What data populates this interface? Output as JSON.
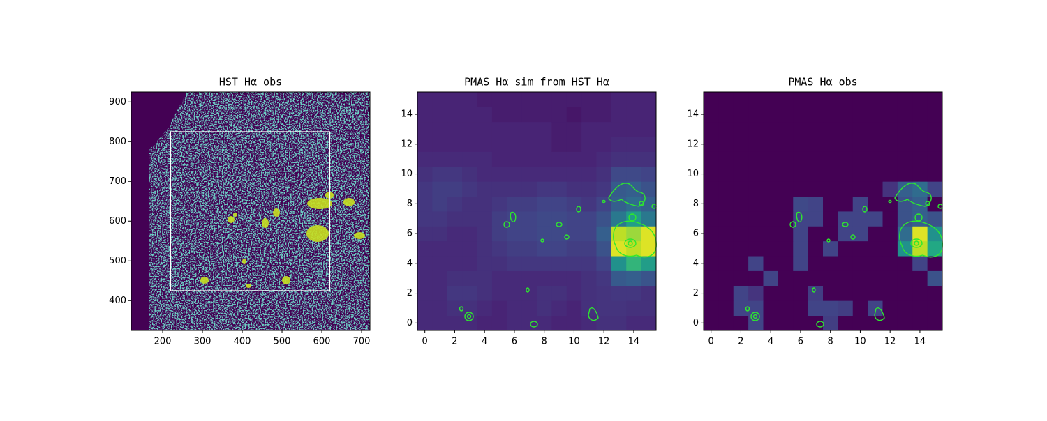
{
  "chart_data": [
    {
      "type": "image",
      "title": "HST Hα obs",
      "xlim": [
        121,
        721
      ],
      "ylim": [
        325,
        925
      ],
      "xticks": [
        200,
        300,
        400,
        500,
        600,
        700
      ],
      "yticks": [
        400,
        500,
        600,
        700,
        800,
        900
      ],
      "box": {
        "x": [
          220,
          620
        ],
        "y": [
          425,
          825
        ],
        "color": "#ffffff"
      }
    },
    {
      "type": "heatmap",
      "title": "PMAS Hα sim from HST Hα",
      "colormap": "viridis",
      "xlim": [
        -0.5,
        15.5
      ],
      "ylim": [
        -0.5,
        15.5
      ],
      "xticks": [
        0,
        2,
        4,
        6,
        8,
        10,
        12,
        14
      ],
      "yticks": [
        0,
        2,
        4,
        6,
        8,
        10,
        12,
        14
      ],
      "z": [
        [
          0.12,
          0.12,
          0.12,
          0.12,
          0.1,
          0.1,
          0.12,
          0.12,
          0.12,
          0.1,
          0.1,
          0.12,
          0.14,
          0.14,
          0.12,
          0.12
        ],
        [
          0.12,
          0.12,
          0.14,
          0.14,
          0.12,
          0.1,
          0.12,
          0.12,
          0.14,
          0.12,
          0.1,
          0.14,
          0.15,
          0.15,
          0.14,
          0.14
        ],
        [
          0.12,
          0.12,
          0.16,
          0.16,
          0.14,
          0.12,
          0.12,
          0.12,
          0.14,
          0.14,
          0.12,
          0.14,
          0.15,
          0.16,
          0.16,
          0.14
        ],
        [
          0.12,
          0.12,
          0.14,
          0.14,
          0.14,
          0.12,
          0.12,
          0.12,
          0.12,
          0.12,
          0.12,
          0.14,
          0.16,
          0.28,
          0.3,
          0.26
        ],
        [
          0.12,
          0.12,
          0.12,
          0.12,
          0.14,
          0.14,
          0.16,
          0.16,
          0.16,
          0.16,
          0.16,
          0.16,
          0.2,
          0.5,
          0.65,
          0.55
        ],
        [
          0.12,
          0.12,
          0.12,
          0.12,
          0.14,
          0.16,
          0.18,
          0.18,
          0.2,
          0.2,
          0.18,
          0.18,
          0.25,
          0.95,
          0.9,
          0.95
        ],
        [
          0.14,
          0.14,
          0.12,
          0.12,
          0.14,
          0.18,
          0.2,
          0.2,
          0.22,
          0.22,
          0.2,
          0.2,
          0.3,
          0.9,
          0.85,
          0.95
        ],
        [
          0.16,
          0.16,
          0.14,
          0.14,
          0.14,
          0.18,
          0.2,
          0.2,
          0.22,
          0.22,
          0.2,
          0.2,
          0.25,
          0.4,
          0.55,
          0.4
        ],
        [
          0.16,
          0.18,
          0.16,
          0.14,
          0.14,
          0.16,
          0.18,
          0.18,
          0.2,
          0.2,
          0.18,
          0.16,
          0.2,
          0.3,
          0.35,
          0.3
        ],
        [
          0.16,
          0.18,
          0.18,
          0.16,
          0.14,
          0.14,
          0.14,
          0.14,
          0.16,
          0.16,
          0.14,
          0.14,
          0.16,
          0.28,
          0.3,
          0.25
        ],
        [
          0.14,
          0.16,
          0.16,
          0.14,
          0.12,
          0.12,
          0.12,
          0.12,
          0.12,
          0.12,
          0.12,
          0.12,
          0.14,
          0.22,
          0.22,
          0.2
        ],
        [
          0.12,
          0.12,
          0.12,
          0.12,
          0.12,
          0.1,
          0.1,
          0.1,
          0.1,
          0.1,
          0.1,
          0.1,
          0.12,
          0.14,
          0.14,
          0.14
        ],
        [
          0.1,
          0.1,
          0.1,
          0.1,
          0.1,
          0.1,
          0.1,
          0.1,
          0.1,
          0.08,
          0.08,
          0.1,
          0.1,
          0.12,
          0.12,
          0.12
        ],
        [
          0.1,
          0.1,
          0.1,
          0.1,
          0.1,
          0.1,
          0.1,
          0.1,
          0.1,
          0.08,
          0.08,
          0.1,
          0.1,
          0.1,
          0.1,
          0.1
        ],
        [
          0.1,
          0.1,
          0.1,
          0.1,
          0.1,
          0.08,
          0.08,
          0.08,
          0.08,
          0.08,
          0.06,
          0.08,
          0.08,
          0.1,
          0.1,
          0.1
        ],
        [
          0.1,
          0.1,
          0.1,
          0.1,
          0.08,
          0.08,
          0.08,
          0.08,
          0.08,
          0.08,
          0.08,
          0.08,
          0.08,
          0.1,
          0.1,
          0.1
        ]
      ]
    },
    {
      "type": "heatmap",
      "title": "PMAS Hα obs",
      "colormap": "viridis",
      "xlim": [
        -0.5,
        15.5
      ],
      "ylim": [
        -0.5,
        15.5
      ],
      "xticks": [
        0,
        2,
        4,
        6,
        8,
        10,
        12,
        14
      ],
      "yticks": [
        0,
        2,
        4,
        6,
        8,
        10,
        12,
        14
      ],
      "z": [
        [
          0,
          0,
          0,
          0.2,
          0,
          0,
          0,
          0,
          0.18,
          0,
          0,
          0,
          0,
          0,
          0,
          0
        ],
        [
          0,
          0,
          0.2,
          0.2,
          0,
          0,
          0,
          0.2,
          0.2,
          0.18,
          0,
          0.2,
          0,
          0,
          0,
          0
        ],
        [
          0,
          0,
          0.2,
          0.15,
          0,
          0,
          0,
          0.18,
          0,
          0,
          0,
          0,
          0,
          0,
          0,
          0
        ],
        [
          0,
          0,
          0,
          0,
          0.2,
          0,
          0,
          0,
          0,
          0,
          0,
          0,
          0,
          0,
          0,
          0.25
        ],
        [
          0,
          0,
          0,
          0.2,
          0,
          0,
          0.2,
          0,
          0,
          0,
          0,
          0,
          0,
          0,
          0.2,
          0
        ],
        [
          0,
          0,
          0,
          0,
          0,
          0,
          0.2,
          0,
          0.2,
          0,
          0,
          0,
          0,
          0.5,
          0.9,
          0.6
        ],
        [
          0,
          0,
          0,
          0,
          0,
          0,
          0.2,
          0,
          0,
          0.2,
          0.2,
          0,
          0,
          0.35,
          0.95,
          0.5
        ],
        [
          0,
          0,
          0,
          0,
          0,
          0,
          0.2,
          0.2,
          0,
          0.2,
          0.2,
          0.2,
          0,
          0.25,
          0.3,
          0.25
        ],
        [
          0,
          0,
          0,
          0,
          0,
          0,
          0.22,
          0.2,
          0,
          0,
          0.2,
          0,
          0,
          0.25,
          0.3,
          0
        ],
        [
          0,
          0,
          0,
          0,
          0,
          0,
          0,
          0,
          0,
          0,
          0,
          0,
          0.15,
          0.3,
          0.35,
          0.2
        ],
        [
          0,
          0,
          0,
          0,
          0,
          0,
          0,
          0,
          0,
          0,
          0,
          0,
          0,
          0,
          0,
          0
        ],
        [
          0,
          0,
          0,
          0,
          0,
          0,
          0,
          0,
          0,
          0,
          0,
          0,
          0,
          0,
          0,
          0
        ],
        [
          0,
          0,
          0,
          0,
          0,
          0,
          0,
          0,
          0,
          0,
          0,
          0,
          0,
          0,
          0,
          0
        ],
        [
          0,
          0,
          0,
          0,
          0,
          0,
          0,
          0,
          0,
          0,
          0,
          0,
          0,
          0,
          0,
          0
        ],
        [
          0,
          0,
          0,
          0,
          0,
          0,
          0,
          0,
          0,
          0,
          0,
          0,
          0,
          0,
          0,
          0
        ],
        [
          0,
          0,
          0,
          0,
          0,
          0,
          0,
          0,
          0,
          0,
          0,
          0,
          0,
          0,
          0,
          0
        ]
      ]
    }
  ]
}
